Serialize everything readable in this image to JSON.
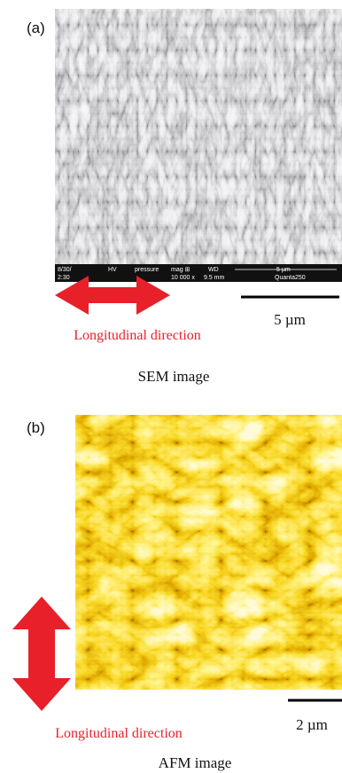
{
  "panel_a": {
    "label": "(a)",
    "info_bar": [
      "8/30/",
      "2:30",
      "HV",
      "pressure",
      "mag ⊞",
      "WD",
      "5 µm",
      "10 000 x",
      "9.5 mm",
      "Quanta250"
    ],
    "arrow_label": "Longitudinal direction",
    "scale_bar": "5 µm",
    "caption": "SEM image"
  },
  "panel_b": {
    "label": "(b)",
    "arrow_label": "Longitudinal direction",
    "scale_bar": "2 µm",
    "caption": "AFM image"
  }
}
